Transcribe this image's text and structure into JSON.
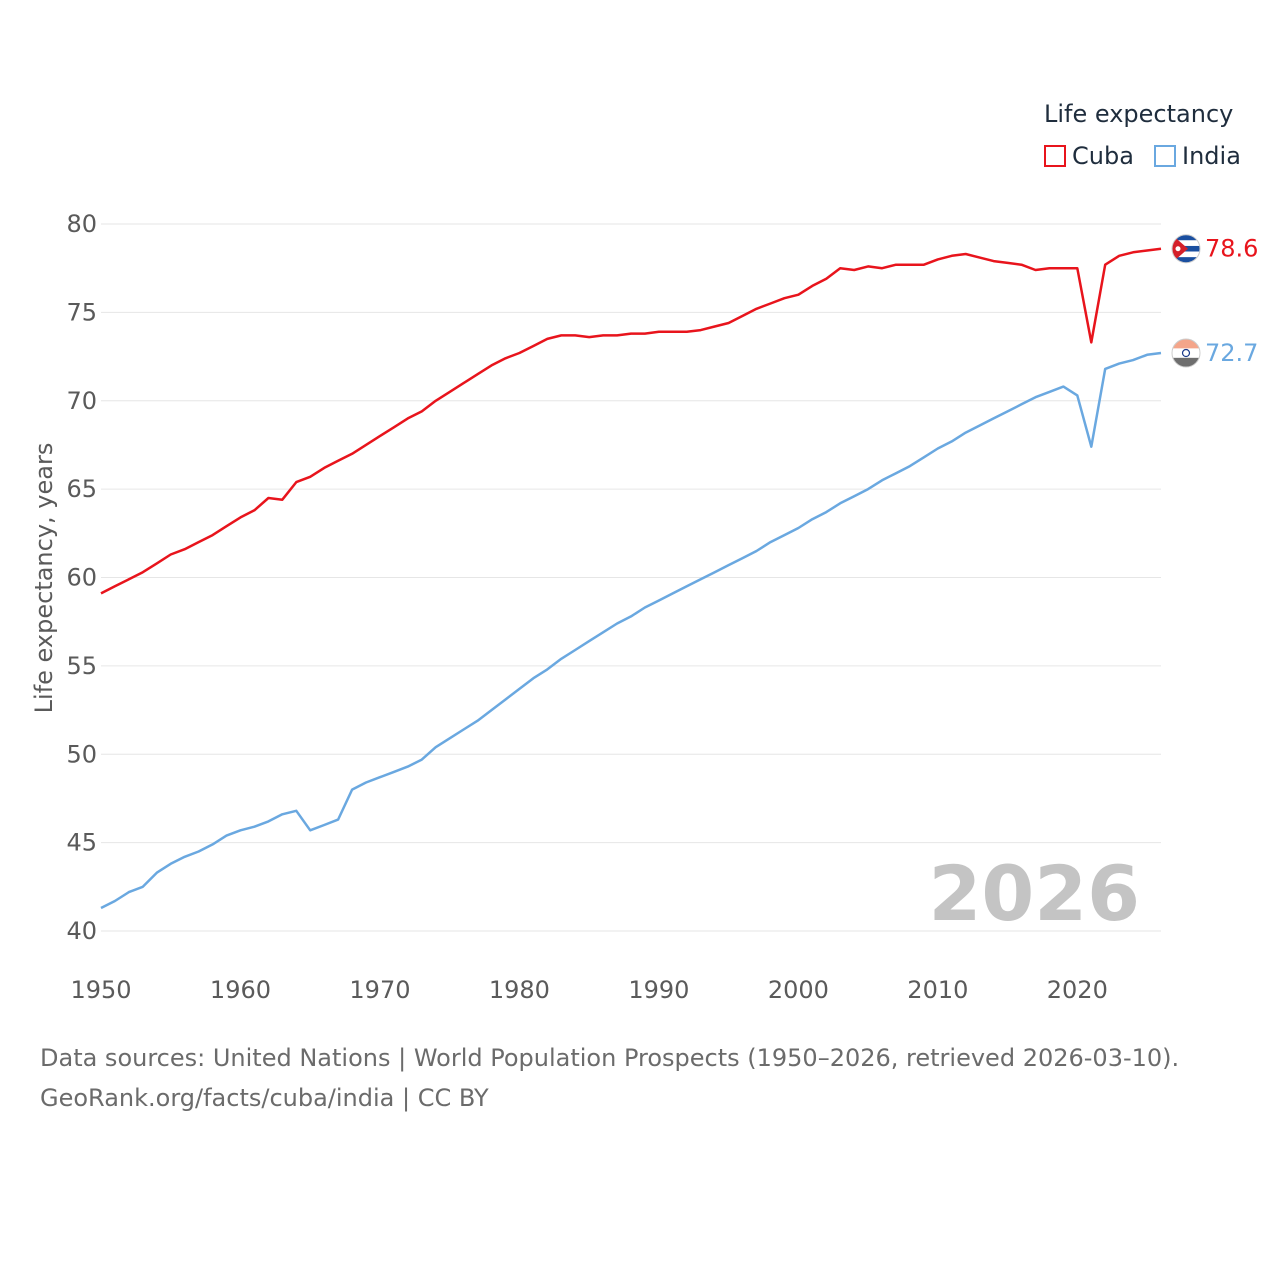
{
  "legend": {
    "title": "Life expectancy",
    "items": [
      {
        "label": "Cuba",
        "color": "#e8141c"
      },
      {
        "label": "India",
        "color": "#6aa8e0"
      }
    ]
  },
  "source": {
    "line1": "Data sources: United Nations | World Population Prospects (1950–2026, retrieved 2026-03-10).",
    "line2": "GeoRank.org/facts/cuba/india | CC BY"
  },
  "chart_data": {
    "type": "line",
    "title": "",
    "xlabel": "",
    "ylabel": "Life expectancy, years",
    "xlim": [
      1950,
      2026
    ],
    "ylim": [
      40,
      80
    ],
    "xticks": [
      1950,
      1960,
      1970,
      1980,
      1990,
      2000,
      2010,
      2020
    ],
    "yticks": [
      40,
      45,
      50,
      55,
      60,
      65,
      70,
      75,
      80
    ],
    "grid": true,
    "watermark": "2026",
    "x": [
      1950,
      1951,
      1952,
      1953,
      1954,
      1955,
      1956,
      1957,
      1958,
      1959,
      1960,
      1961,
      1962,
      1963,
      1964,
      1965,
      1966,
      1967,
      1968,
      1969,
      1970,
      1971,
      1972,
      1973,
      1974,
      1975,
      1976,
      1977,
      1978,
      1979,
      1980,
      1981,
      1982,
      1983,
      1984,
      1985,
      1986,
      1987,
      1988,
      1989,
      1990,
      1991,
      1992,
      1993,
      1994,
      1995,
      1996,
      1997,
      1998,
      1999,
      2000,
      2001,
      2002,
      2003,
      2004,
      2005,
      2006,
      2007,
      2008,
      2009,
      2010,
      2011,
      2012,
      2013,
      2014,
      2015,
      2016,
      2017,
      2018,
      2019,
      2020,
      2021,
      2022,
      2023,
      2024,
      2025,
      2026
    ],
    "series": [
      {
        "name": "Cuba",
        "color": "#e8141c",
        "end_label": "78.6",
        "values": [
          59.1,
          59.5,
          59.9,
          60.3,
          60.8,
          61.3,
          61.6,
          62.0,
          62.4,
          62.9,
          63.4,
          63.8,
          64.5,
          64.4,
          65.4,
          65.7,
          66.2,
          66.6,
          67.0,
          67.5,
          68.0,
          68.5,
          69.0,
          69.4,
          70.0,
          70.5,
          71.0,
          71.5,
          72.0,
          72.4,
          72.7,
          73.1,
          73.5,
          73.7,
          73.7,
          73.6,
          73.7,
          73.7,
          73.8,
          73.8,
          73.9,
          73.9,
          73.9,
          74.0,
          74.2,
          74.4,
          74.8,
          75.2,
          75.5,
          75.8,
          76.0,
          76.5,
          76.9,
          77.5,
          77.4,
          77.6,
          77.5,
          77.7,
          77.7,
          77.7,
          78.0,
          78.2,
          78.3,
          78.1,
          77.9,
          77.8,
          77.7,
          77.4,
          77.5,
          77.5,
          77.5,
          73.3,
          77.7,
          78.2,
          78.4,
          78.5,
          78.6
        ]
      },
      {
        "name": "India",
        "color": "#6aa8e0",
        "end_label": "72.7",
        "values": [
          41.3,
          41.7,
          42.2,
          42.5,
          43.3,
          43.8,
          44.2,
          44.5,
          44.9,
          45.4,
          45.7,
          45.9,
          46.2,
          46.6,
          46.8,
          45.7,
          46.0,
          46.3,
          48.0,
          48.4,
          48.7,
          49.0,
          49.3,
          49.7,
          50.4,
          50.9,
          51.4,
          51.9,
          52.5,
          53.1,
          53.7,
          54.3,
          54.8,
          55.4,
          55.9,
          56.4,
          56.9,
          57.4,
          57.8,
          58.3,
          58.7,
          59.1,
          59.5,
          59.9,
          60.3,
          60.7,
          61.1,
          61.5,
          62.0,
          62.4,
          62.8,
          63.3,
          63.7,
          64.2,
          64.6,
          65.0,
          65.5,
          65.9,
          66.3,
          66.8,
          67.3,
          67.7,
          68.2,
          68.6,
          69.0,
          69.4,
          69.8,
          70.2,
          70.5,
          70.8,
          70.3,
          67.4,
          71.8,
          72.1,
          72.3,
          72.6,
          72.7
        ]
      }
    ]
  }
}
